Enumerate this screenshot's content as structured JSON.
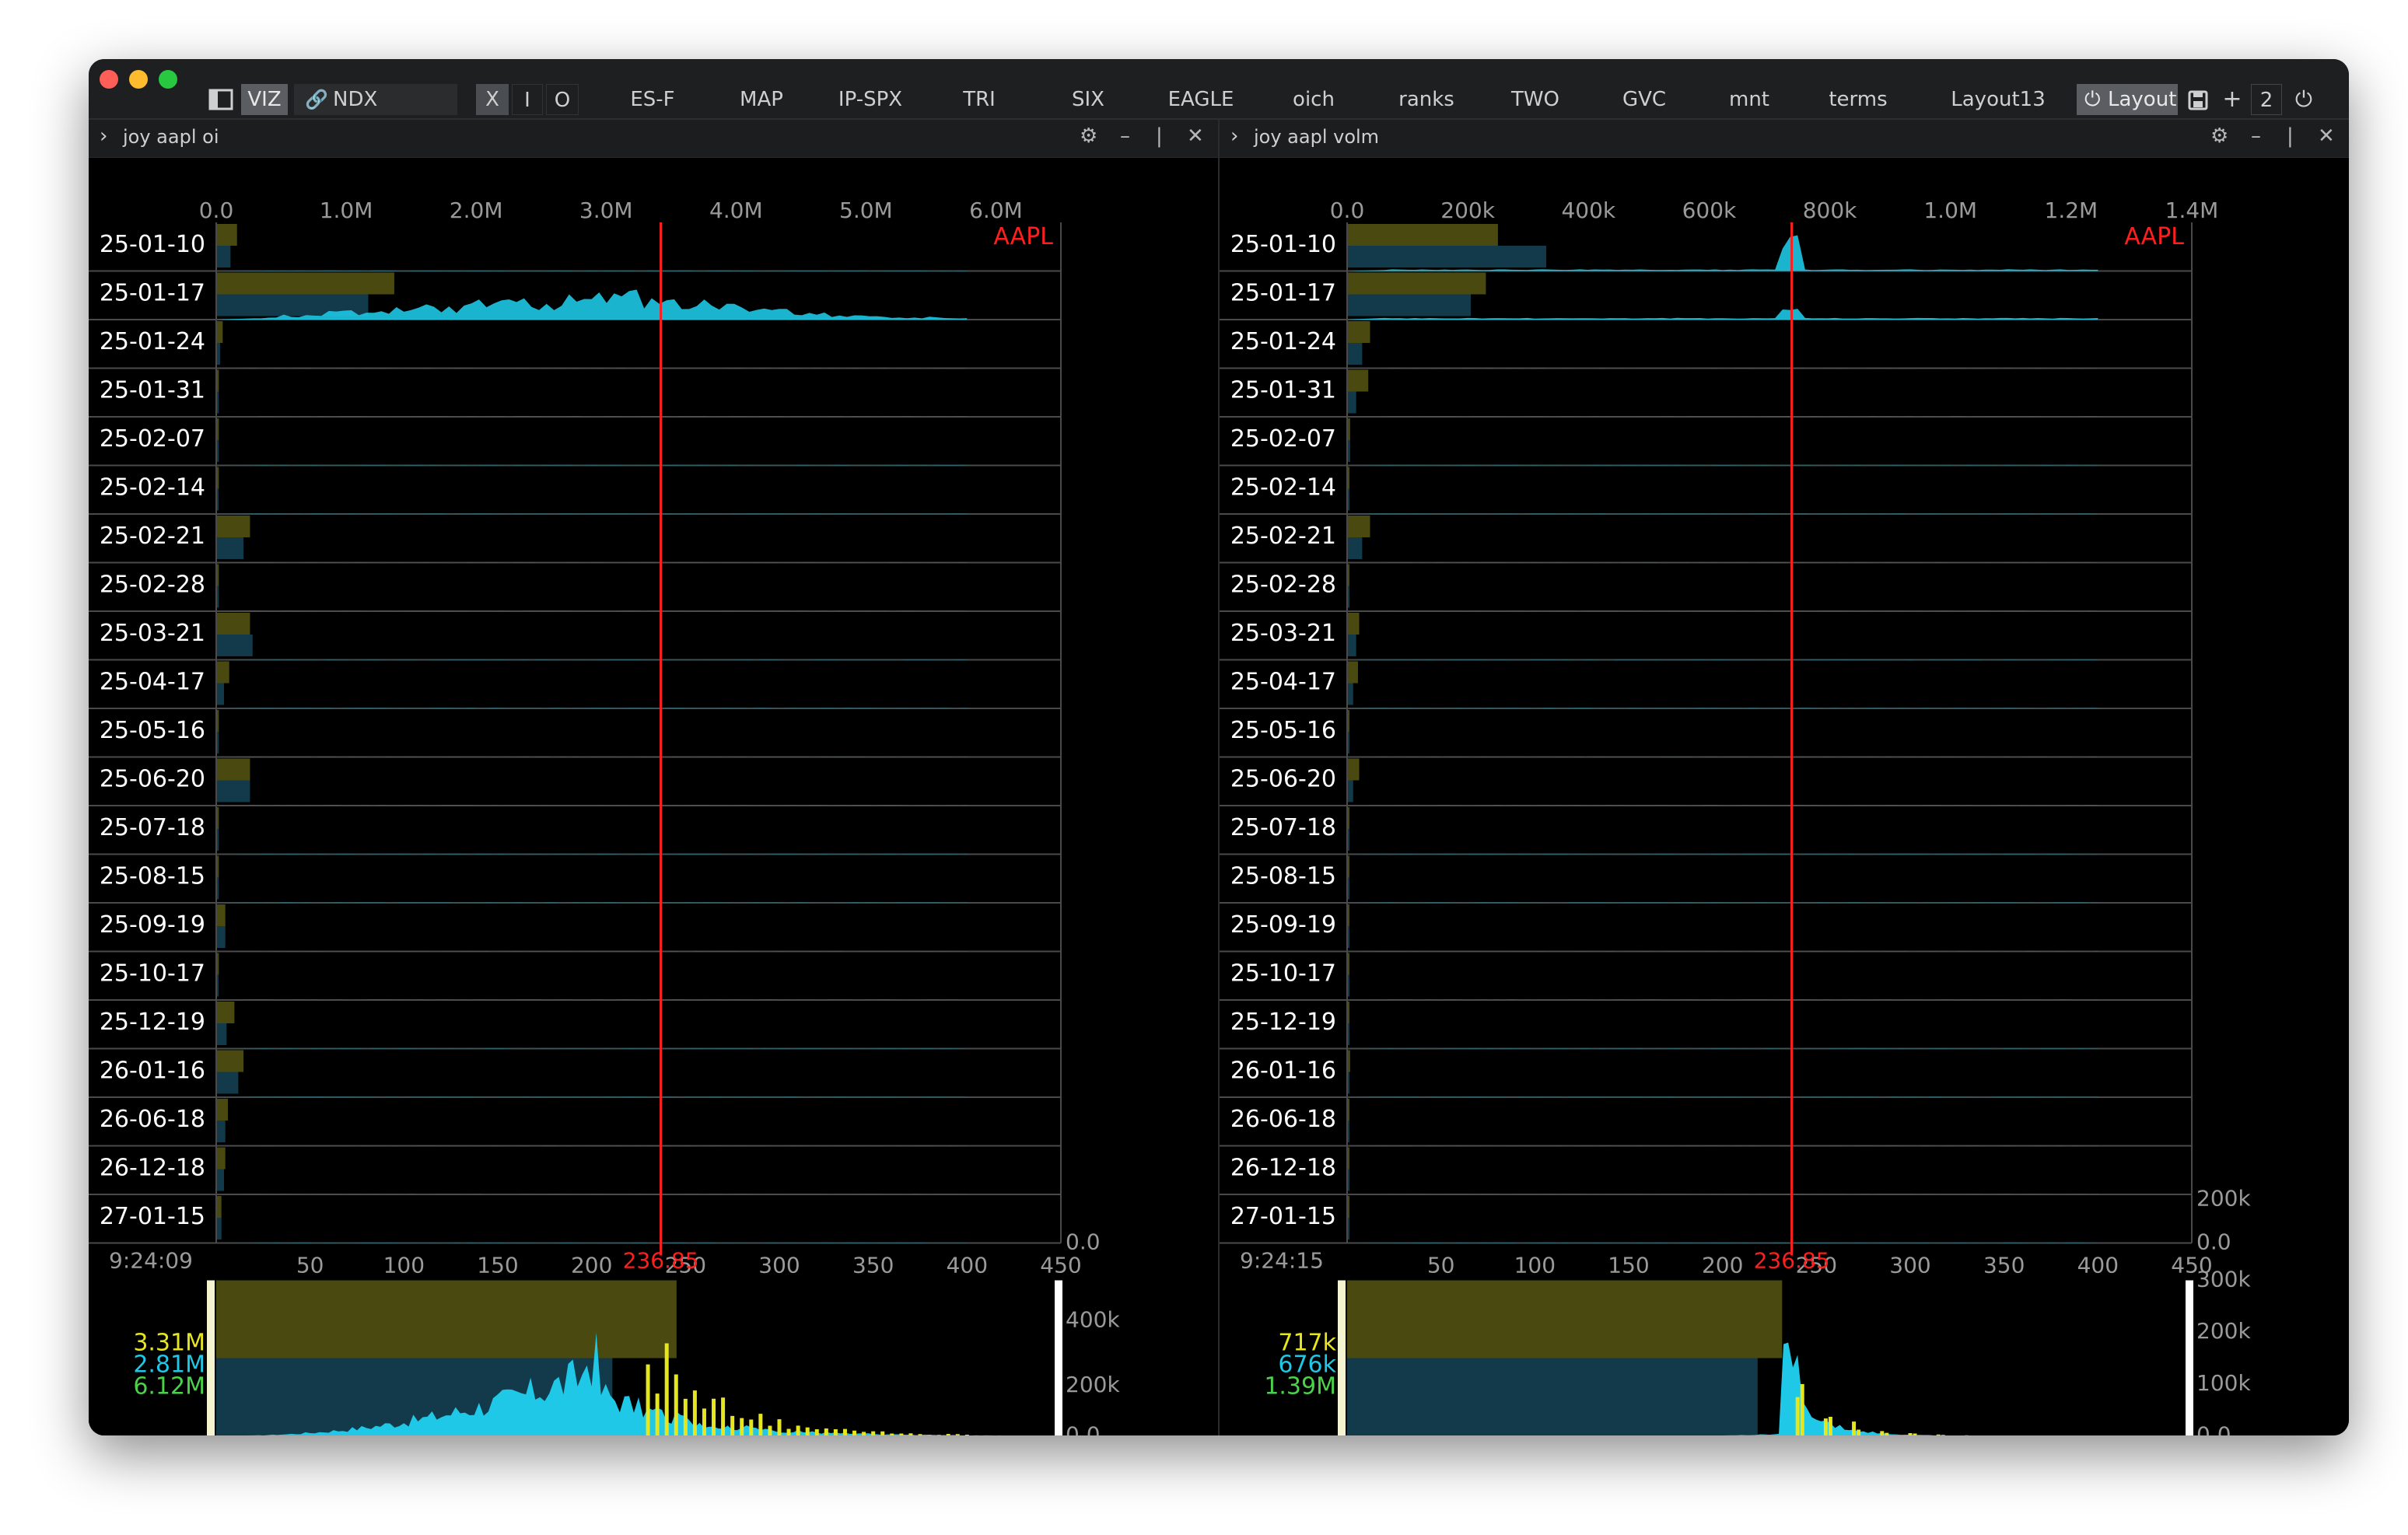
{
  "window": {
    "tabs": [
      {
        "label": "VIZ",
        "selected": true
      },
      {
        "label": "NDX",
        "selected": false
      },
      {
        "label": "X",
        "selected": true
      },
      {
        "label": "I",
        "selected": false
      },
      {
        "label": "O",
        "selected": false
      },
      {
        "label": "ES-F"
      },
      {
        "label": "MAP"
      },
      {
        "label": "IP-SPX"
      },
      {
        "label": "TRI"
      },
      {
        "label": "SIX"
      },
      {
        "label": "EAGLE"
      },
      {
        "label": "oich"
      },
      {
        "label": "ranks"
      },
      {
        "label": "TWO"
      },
      {
        "label": "GVC"
      },
      {
        "label": "mnt"
      },
      {
        "label": "terms"
      },
      {
        "label": "Layout13"
      },
      {
        "label": "Layout",
        "selected": true
      }
    ],
    "counter": "2",
    "icons": [
      "sidebar-toggle-icon",
      "link-icon",
      "layout-power-icon",
      "save-icon",
      "plus-icon",
      "power-icon"
    ]
  },
  "colors": {
    "olive": "#4a4a10",
    "teal": "#123a4a",
    "cyan": "#1ec8e6",
    "yellow": "#e6e61e",
    "red": "#ff1e1e",
    "green": "#4ad24a"
  },
  "panels": [
    {
      "title": "joy aapl oi",
      "symbol": "AAPL",
      "top_axis": [
        "0.0",
        "1.0M",
        "2.0M",
        "3.0M",
        "4.0M",
        "5.0M",
        "6.0M"
      ],
      "top_max": 6500000,
      "dates": [
        "25-01-10",
        "25-01-17",
        "25-01-24",
        "25-01-31",
        "25-02-07",
        "25-02-14",
        "25-02-21",
        "25-02-28",
        "25-03-21",
        "25-04-17",
        "25-05-16",
        "25-06-20",
        "25-07-18",
        "25-08-15",
        "25-09-19",
        "25-10-17",
        "25-12-19",
        "26-01-16",
        "26-06-18",
        "26-12-18",
        "27-01-15"
      ],
      "call_totals": [
        160000,
        1370000,
        50000,
        20000,
        20000,
        20000,
        260000,
        20000,
        260000,
        100000,
        20000,
        260000,
        20000,
        20000,
        70000,
        20000,
        140000,
        210000,
        90000,
        70000,
        40000
      ],
      "put_totals": [
        110000,
        1170000,
        30000,
        20000,
        20000,
        10000,
        210000,
        20000,
        280000,
        60000,
        20000,
        260000,
        20000,
        20000,
        70000,
        10000,
        80000,
        170000,
        70000,
        60000,
        40000
      ],
      "spot": "236.85",
      "spot_value": 236.85,
      "time": "9:24:09",
      "strike_axis": [
        "50",
        "100",
        "150",
        "200",
        "250",
        "300",
        "350",
        "400",
        "450"
      ],
      "row_scale_labels": [
        "0.0"
      ],
      "summary": {
        "calls": "3.31M",
        "puts": "2.81M",
        "total": "6.12M"
      },
      "bottom_call_fraction": 0.545,
      "bottom_put_fraction": 0.469,
      "bottom_scale": [
        "400k",
        "200k",
        "0.0"
      ],
      "bottom_max": 500000,
      "profile": "oi"
    },
    {
      "title": "joy aapl volm",
      "symbol": "AAPL",
      "top_axis": [
        "0.0",
        "200k",
        "400k",
        "600k",
        "800k",
        "1.0M",
        "1.2M",
        "1.4M"
      ],
      "top_max": 1400000,
      "dates": [
        "25-01-10",
        "25-01-17",
        "25-01-24",
        "25-01-31",
        "25-02-07",
        "25-02-14",
        "25-02-21",
        "25-02-28",
        "25-03-21",
        "25-04-17",
        "25-05-16",
        "25-06-20",
        "25-07-18",
        "25-08-15",
        "25-09-19",
        "25-10-17",
        "25-12-19",
        "26-01-16",
        "26-06-18",
        "26-12-18",
        "27-01-15"
      ],
      "call_totals": [
        250000,
        230000,
        38000,
        35000,
        5000,
        3000,
        38000,
        3000,
        20000,
        18000,
        3000,
        20000,
        3000,
        3000,
        3000,
        3000,
        3000,
        5000,
        3000,
        3000,
        3000
      ],
      "put_totals": [
        330000,
        205000,
        25000,
        15000,
        5000,
        3000,
        25000,
        3000,
        15000,
        10000,
        3000,
        10000,
        3000,
        3000,
        3000,
        3000,
        3000,
        3000,
        3000,
        3000,
        3000
      ],
      "spot": "236.85",
      "spot_value": 236.85,
      "time": "9:24:15",
      "strike_axis": [
        "50",
        "100",
        "150",
        "200",
        "250",
        "300",
        "350",
        "400",
        "450"
      ],
      "row_scale_labels": [
        "200k",
        "0.0"
      ],
      "summary": {
        "calls": "717k",
        "puts": "676k",
        "total": "1.39M"
      },
      "bottom_call_fraction": 0.515,
      "bottom_put_fraction": 0.486,
      "bottom_scale": [
        "300k",
        "200k",
        "100k",
        "0.0"
      ],
      "bottom_max": 300000,
      "profile": "volm"
    }
  ]
}
